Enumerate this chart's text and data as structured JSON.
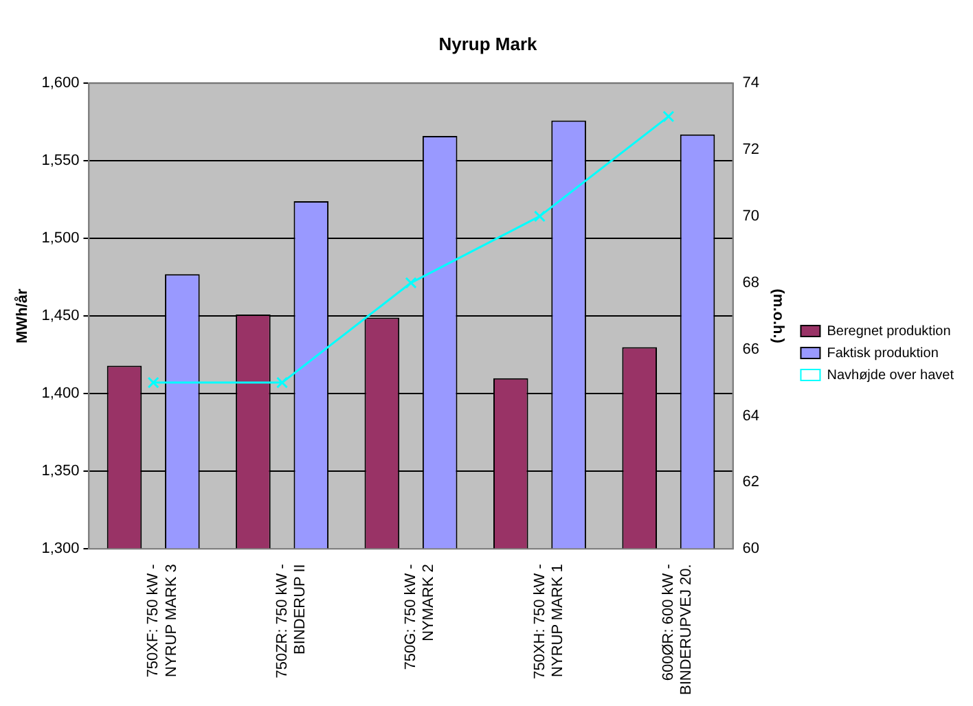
{
  "chart_data": {
    "type": "bar",
    "title": "Nyrup Mark",
    "ylabel": "MWh/år",
    "y2label": "(m.o.h.)",
    "categories": [
      "750XF: 750 kW - NYRUP MARK 3",
      "750ZR: 750 kW - BINDERUP II",
      "750G: 750 kW - NYMARK 2",
      "750XH: 750 kW - NYRUP MARK 1",
      "600ØR: 600 kW - BINDERUPVEJ 20."
    ],
    "series": [
      {
        "name": "Beregnet produktion",
        "color": "#993366",
        "values": [
          1418,
          1451,
          1449,
          1410,
          1430
        ]
      },
      {
        "name": "Faktisk produktion",
        "color": "#9999ff",
        "values": [
          1477,
          1524,
          1566,
          1576,
          1567
        ]
      },
      {
        "name": "Navhøjde over havet",
        "color": "#00ffff",
        "type": "line",
        "axis": "y2",
        "marker": "cross",
        "values": [
          65,
          65,
          68,
          70,
          73
        ]
      }
    ],
    "ylim": [
      1300,
      1600
    ],
    "yticks": [
      {
        "value": 1300,
        "label": "1,300"
      },
      {
        "value": 1350,
        "label": "1,350"
      },
      {
        "value": 1400,
        "label": "1,400"
      },
      {
        "value": 1450,
        "label": "1,450"
      },
      {
        "value": 1500,
        "label": "1,500"
      },
      {
        "value": 1550,
        "label": "1,550"
      },
      {
        "value": 1600,
        "label": "1,600"
      }
    ],
    "y2lim": [
      60,
      74
    ],
    "y2ticks": [
      60,
      62,
      64,
      66,
      68,
      70,
      72,
      74
    ],
    "grid": "y",
    "legend": "right"
  }
}
